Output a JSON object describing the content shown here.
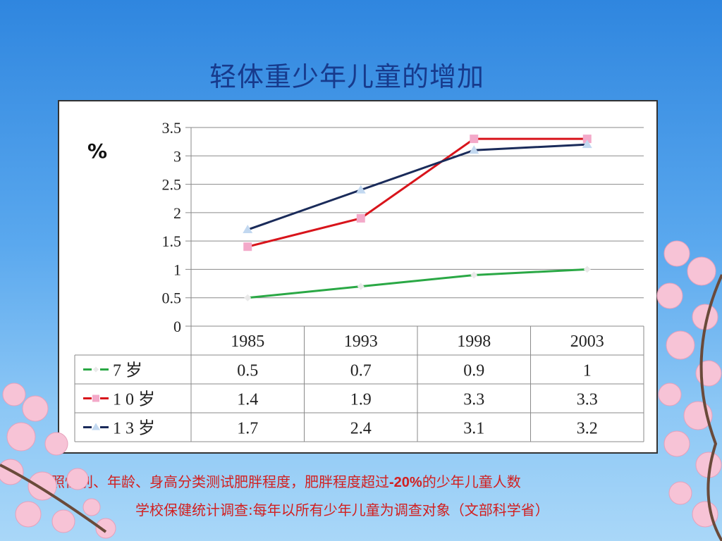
{
  "slide": {
    "title": "轻体重少年儿童的增加",
    "unit_label": "%",
    "note_line1_a": "按照性别、年龄、身高分类测试肥胖程度，肥胖程度超过",
    "note_line1_b": "-20%",
    "note_line1_c": "的少年儿童人数",
    "note_line2": "学校保健统计调查:每年以所有少年儿童为调查对象（文部科学省）"
  },
  "chart_data": {
    "type": "line",
    "categories": [
      "1985",
      "1993",
      "1998",
      "2003"
    ],
    "ylim": [
      0,
      3.5
    ],
    "yticks": [
      "0",
      "0.5",
      "1",
      "1.5",
      "2",
      "2.5",
      "3",
      "3.5"
    ],
    "grid": true,
    "legend_placement": "data table",
    "series": [
      {
        "name": "7 岁",
        "values": [
          0.5,
          0.7,
          0.9,
          1
        ],
        "value_labels": [
          "0.5",
          "0.7",
          "0.9",
          "1"
        ],
        "color": "#2aa845",
        "marker": "diamond"
      },
      {
        "name": "1 0 岁",
        "values": [
          1.4,
          1.9,
          3.3,
          3.3
        ],
        "value_labels": [
          "1.4",
          "1.9",
          "3.3",
          "3.3"
        ],
        "color": "#d8141b",
        "marker": "square",
        "marker_color": "#f3a9c9"
      },
      {
        "name": "1 3 岁",
        "values": [
          1.7,
          2.4,
          3.1,
          3.2
        ],
        "value_labels": [
          "1.7",
          "2.4",
          "3.1",
          "3.2"
        ],
        "color": "#1a2b5a",
        "marker": "triangle",
        "marker_color": "#c2d8f0"
      }
    ]
  }
}
